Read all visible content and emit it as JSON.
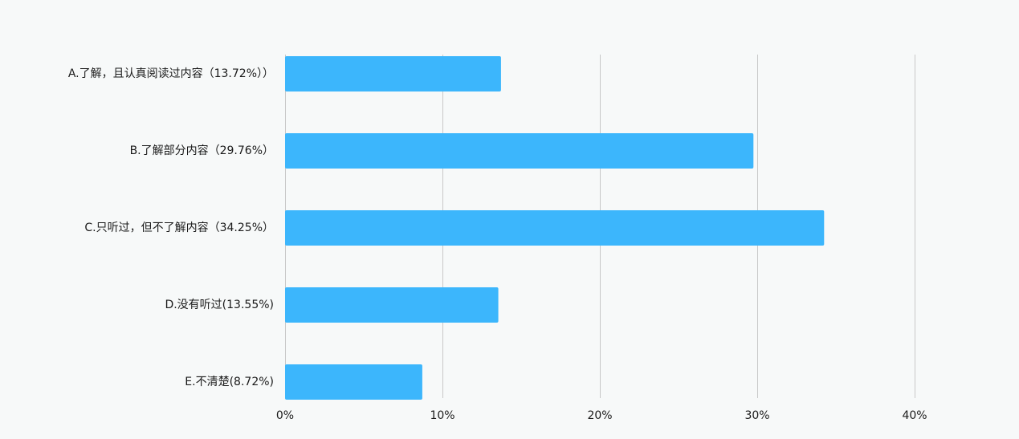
{
  "chart_data": {
    "type": "bar",
    "orientation": "horizontal",
    "categories": [
      "A.了解，且认真阅读过内容（13.72%））",
      "B.了解部分内容（29.76%）",
      "C.只听过，但不了解内容（34.25%）",
      "D.没有听过(13.55%)",
      "E.不清楚(8.72%)"
    ],
    "values": [
      13.72,
      29.76,
      34.25,
      13.55,
      8.72
    ],
    "xlim": [
      0,
      40
    ],
    "xticks": [
      0,
      10,
      20,
      30,
      40
    ],
    "xtick_labels": [
      "0%",
      "10%",
      "20%",
      "30%",
      "40%"
    ],
    "grid": true,
    "bar_color": "#3cb6fc",
    "title": "",
    "xlabel": "",
    "ylabel": ""
  }
}
